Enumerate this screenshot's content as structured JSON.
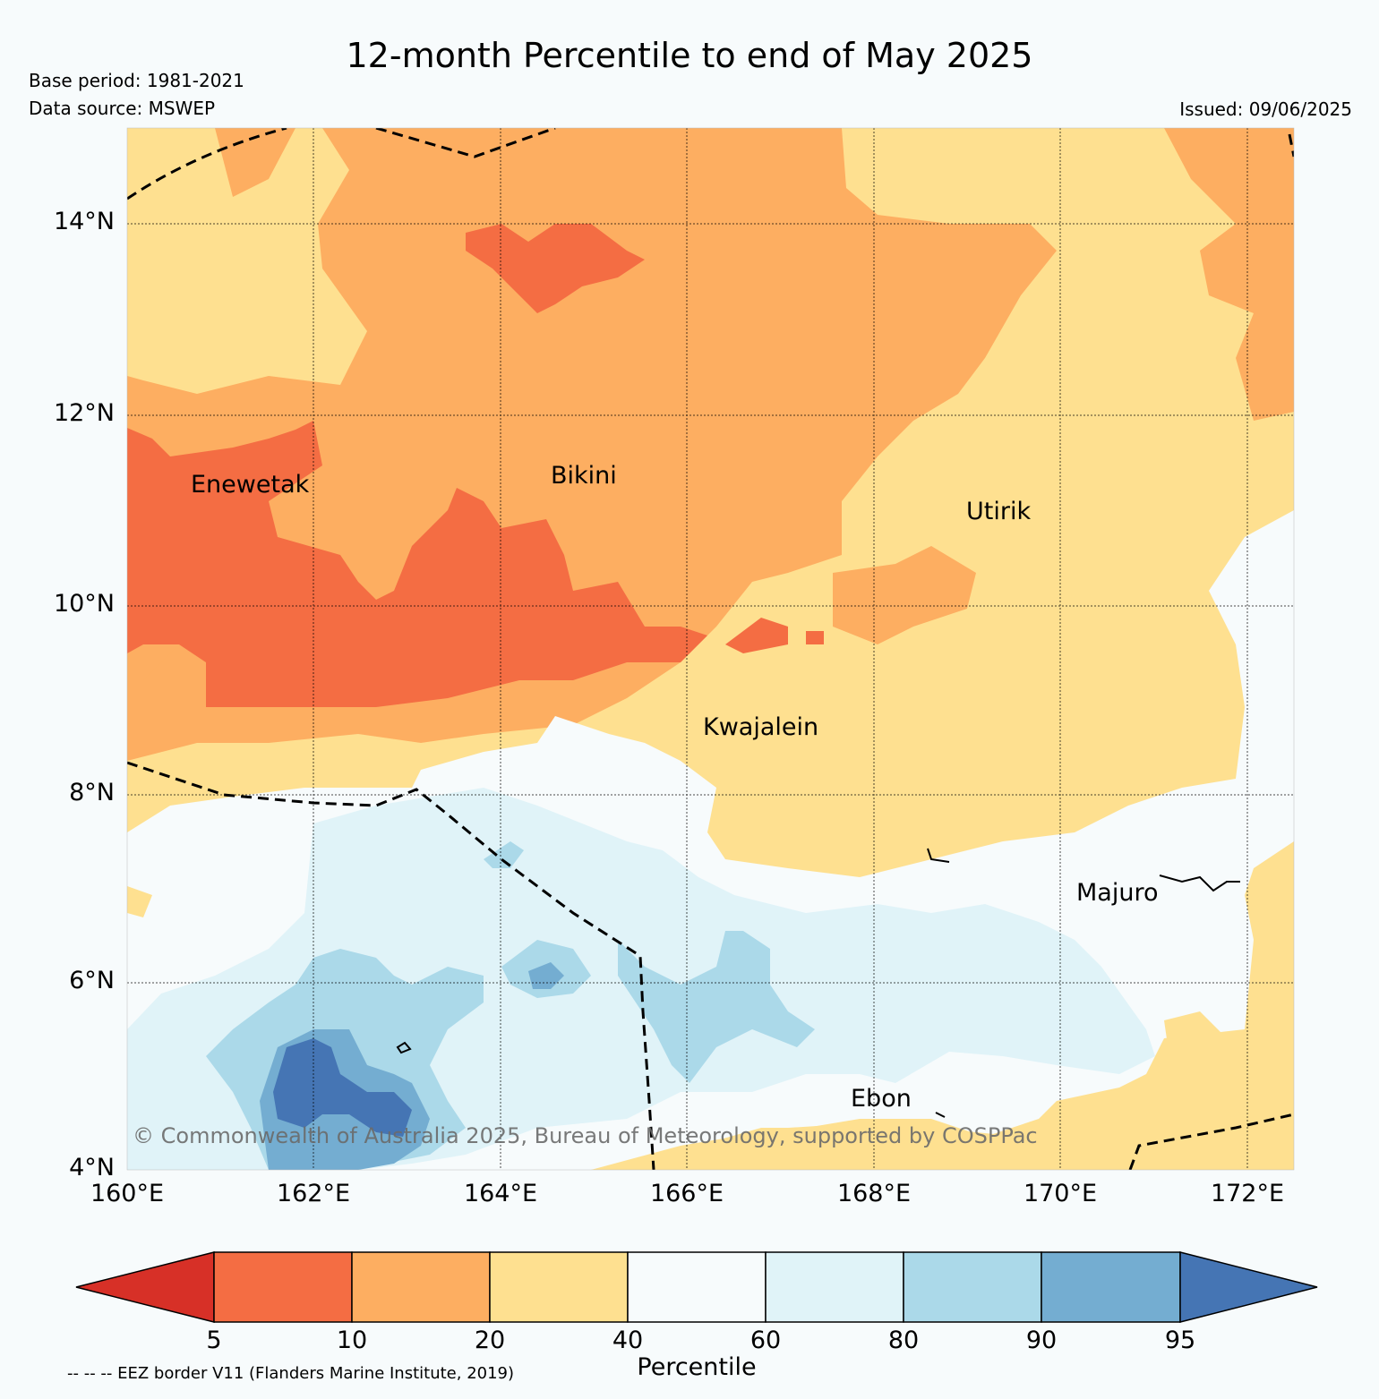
{
  "title": "12-month Percentile to end of May 2025",
  "base_period": "Base period: 1981-2021",
  "data_source": "Data source: MSWEP",
  "issued": "Issued: 09/06/2025",
  "copyright": "© Commonwealth of Australia 2025, Bureau of Meteorology, supported by COSPPac",
  "eez_note": "-- -- -- EEZ border V11 (Flanders Marine Institute, 2019)",
  "map": {
    "lon_range": [
      160,
      172.5
    ],
    "lat_range": [
      4,
      15
    ],
    "lat_ticks": [
      "14°N",
      "12°N",
      "10°N",
      "8°N",
      "6°N",
      "4°N"
    ],
    "lon_ticks": [
      "160°E",
      "162°E",
      "164°E",
      "166°E",
      "168°E",
      "170°E",
      "172°E"
    ],
    "grid": true,
    "places": [
      {
        "name": "Enewetak"
      },
      {
        "name": "Bikini"
      },
      {
        "name": "Utirik"
      },
      {
        "name": "Kwajalein"
      },
      {
        "name": "Majuro"
      },
      {
        "name": "Ebon"
      }
    ]
  },
  "colorbar": {
    "label": "Percentile",
    "ticks": [
      "5",
      "10",
      "20",
      "40",
      "60",
      "80",
      "90",
      "95"
    ],
    "colors": [
      "#d73027",
      "#f46d43",
      "#fdae61",
      "#fee090",
      "#f7fbfc",
      "#e0f3f8",
      "#abd9e9",
      "#74add1",
      "#4575b4"
    ]
  }
}
